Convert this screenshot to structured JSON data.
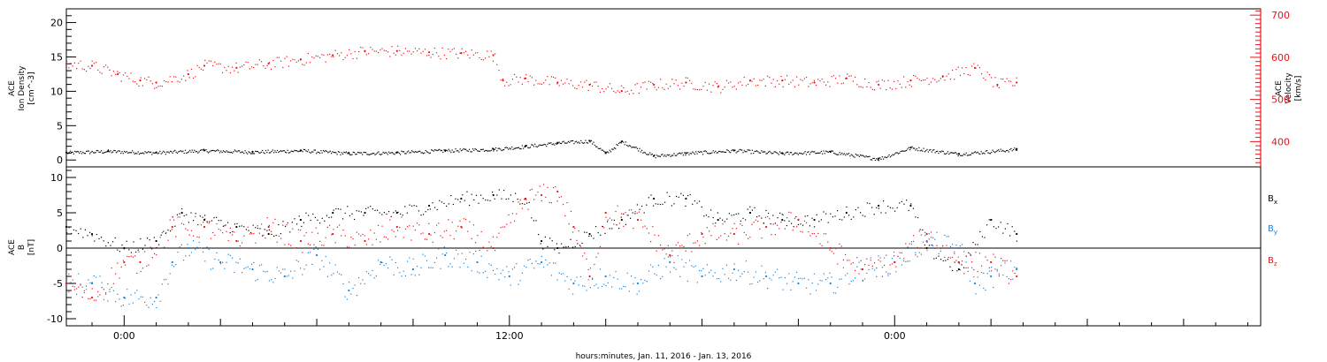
{
  "figure": {
    "xlabel": "hours:minutes, Jan. 11, 2016 - Jan. 13, 2016",
    "x_tick_labels": [
      "0:00",
      "12:00",
      "0:00"
    ],
    "x_tick_hours": [
      0,
      12,
      24
    ],
    "x_range_hours": [
      -1.8,
      35.4
    ],
    "data_end_hour": 27.8
  },
  "chart_data": [
    {
      "type": "scatter",
      "panel": "top",
      "ylabel_lines": [
        "ACE",
        "Ion Density",
        "[cm^-3]"
      ],
      "y2label_lines": [
        "ACE",
        "Velocity",
        "[km/s]"
      ],
      "ylim": [
        -1,
        22
      ],
      "yticks": [
        "0",
        "5",
        "10",
        "15",
        "20"
      ],
      "y2lim": [
        340,
        715
      ],
      "y2ticks": [
        "400",
        "500",
        "600",
        "700"
      ],
      "colors": {
        "density": "#000000",
        "velocity": "#e8141b"
      },
      "series": [
        {
          "axis": "left",
          "color": "#000000",
          "x": [
            -1.8,
            -0.5,
            1,
            2.5,
            4,
            5.5,
            7,
            8.5,
            10,
            11.5,
            12.5,
            13.5,
            14.5,
            15,
            15.5,
            16.5,
            17.5,
            19,
            20.5,
            22,
            23.5,
            24.5,
            26,
            27.8
          ],
          "values": [
            1.1,
            1.3,
            1.1,
            1.4,
            1.2,
            1.4,
            1.0,
            1.1,
            1.4,
            1.6,
            2.0,
            2.5,
            2.8,
            1.0,
            2.7,
            0.6,
            1.0,
            1.4,
            1.0,
            1.2,
            0.2,
            1.8,
            0.9,
            1.6
          ]
        },
        {
          "axis": "right",
          "color": "#e8141b",
          "x": [
            -1.8,
            -1,
            -0.2,
            0.5,
            1,
            2,
            2.5,
            3.5,
            4.5,
            5.5,
            6.5,
            7.5,
            8.5,
            9.5,
            10.5,
            11.5,
            11.8,
            12.5,
            13.5,
            14.5,
            15.5,
            16.5,
            17.5,
            18.5,
            19.5,
            20.5,
            21.5,
            22.5,
            23.5,
            24.5,
            25.5,
            26.5,
            27.2,
            27.8
          ],
          "values": [
            585,
            580,
            560,
            545,
            540,
            560,
            580,
            575,
            585,
            595,
            605,
            615,
            615,
            612,
            610,
            605,
            545,
            550,
            540,
            535,
            520,
            535,
            540,
            530,
            545,
            545,
            540,
            550,
            535,
            545,
            555,
            575,
            535,
            540
          ]
        }
      ]
    },
    {
      "type": "scatter",
      "panel": "bottom",
      "ylabel_lines": [
        "ACE",
        "B",
        "[nT]"
      ],
      "ylim": [
        -11,
        11.5
      ],
      "yticks": [
        "-10",
        "-5",
        "0",
        "5",
        "10"
      ],
      "zero_line": true,
      "colors": {
        "Bx": "#000000",
        "By": "#1a82d6",
        "Bz": "#e8141b"
      },
      "series": [
        {
          "name": "Bx",
          "label_main": "B",
          "label_sub": "x",
          "color": "#000000",
          "x": [
            -1.8,
            -1,
            0,
            1,
            1.8,
            2.5,
            3.5,
            4.5,
            5.5,
            6.5,
            7.5,
            8.5,
            9.5,
            10.5,
            11.5,
            12.5,
            13,
            13.5,
            14.5,
            15.5,
            16.5,
            17.5,
            18.5,
            19.5,
            20.5,
            21.5,
            22.5,
            23.5,
            24.5,
            25,
            26,
            27,
            27.8
          ],
          "values": [
            3,
            2,
            0,
            1,
            5,
            4,
            3,
            2,
            4,
            5,
            5,
            5,
            6,
            7,
            7.5,
            7,
            1,
            0,
            2,
            4,
            7,
            7,
            4,
            5,
            4,
            4,
            5,
            6,
            6,
            0,
            -3,
            4,
            2
          ]
        },
        {
          "name": "By",
          "label_main": "B",
          "label_sub": "y",
          "color": "#1a82d6",
          "x": [
            -1.8,
            -1,
            0,
            1,
            1.5,
            2,
            3,
            4,
            5,
            6,
            7,
            8,
            9,
            10,
            11,
            12,
            13,
            14,
            15,
            16,
            17,
            18,
            19,
            20,
            21,
            22,
            23,
            24,
            25,
            26,
            26.5,
            27,
            27.8
          ],
          "values": [
            -5,
            -5,
            -7,
            -7,
            -2,
            0,
            -2,
            -3,
            -4,
            -1,
            -6,
            -2,
            -3,
            -1,
            -2,
            -4,
            -2,
            -5,
            -4,
            -5,
            -2,
            -4,
            -3,
            -4,
            -5,
            -5,
            -3,
            -2,
            1,
            0,
            -5,
            -4,
            -3
          ]
        },
        {
          "name": "Bz",
          "label_main": "B",
          "label_sub": "z",
          "color": "#e8141b",
          "x": [
            -1.8,
            -1,
            0,
            0.5,
            1.5,
            2.5,
            3.5,
            4.5,
            5.5,
            6.5,
            7.5,
            8.5,
            9.5,
            10.5,
            11.5,
            12.5,
            13,
            13.5,
            14,
            14.5,
            15,
            16,
            17,
            18,
            19,
            20,
            21,
            22,
            23,
            24,
            25,
            26,
            27,
            27.8
          ],
          "values": [
            -5,
            -7,
            -2,
            -2,
            3,
            3,
            1,
            3,
            1,
            2,
            1,
            3,
            2,
            3,
            0,
            7,
            7.5,
            8,
            3,
            -4,
            5,
            4,
            -1,
            2,
            2,
            3,
            4,
            0,
            -3,
            -2,
            2,
            -2,
            -2,
            -4
          ]
        }
      ]
    }
  ]
}
